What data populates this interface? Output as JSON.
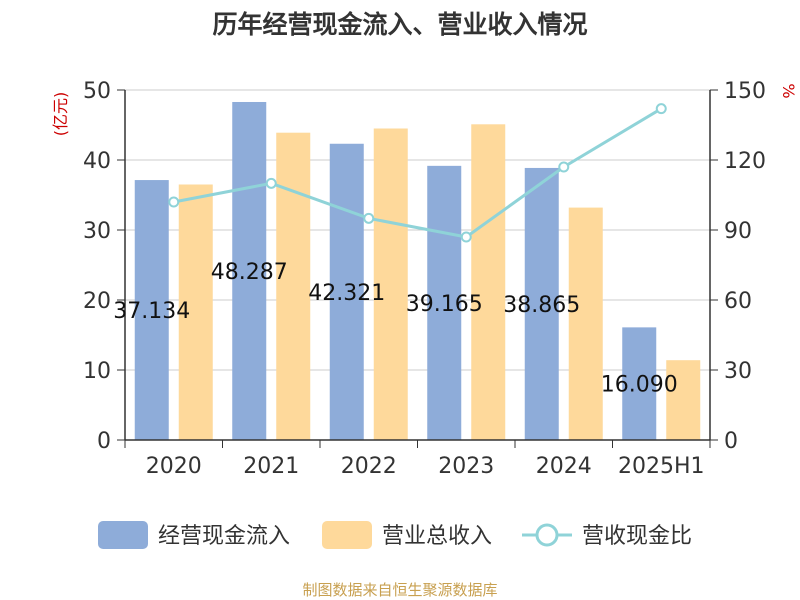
{
  "chart_data": {
    "type": "bar",
    "title": "历年经营现金流入、营业收入情况",
    "categories": [
      "2020",
      "2021",
      "2022",
      "2023",
      "2024",
      "2025H1"
    ],
    "series": [
      {
        "name": "经营现金流入",
        "axis": "left",
        "color": "#8eacd9",
        "values": [
          37.134,
          48.287,
          42.321,
          39.165,
          38.865,
          16.09
        ],
        "labels": [
          "37.134",
          "48.287",
          "42.321",
          "39.165",
          "38.865",
          "16.090"
        ]
      },
      {
        "name": "营业总收入",
        "axis": "left",
        "color": "#fed99b",
        "values": [
          36.5,
          43.9,
          44.5,
          45.1,
          33.2,
          11.4
        ]
      },
      {
        "name": "营收现金比",
        "axis": "right",
        "type": "line",
        "color": "#8fd3d8",
        "values": [
          102,
          110,
          95,
          87,
          117,
          142
        ]
      }
    ],
    "y_left": {
      "label": "(亿元)",
      "min": 0,
      "max": 50,
      "ticks": [
        "0",
        "10",
        "20",
        "30",
        "40",
        "50"
      ]
    },
    "y_right": {
      "label": "%",
      "min": 0,
      "max": 150,
      "ticks": [
        "0",
        "30",
        "60",
        "90",
        "120",
        "150"
      ]
    },
    "grid": true,
    "legend_position": "bottom"
  },
  "footer": {
    "source": "制图数据来自恒生聚源数据库"
  },
  "colors": {
    "title": "#333333",
    "axis_text": "#333333",
    "unit_red": "#cc0000",
    "grid": "#cccccc",
    "footer": "#c8a050"
  }
}
